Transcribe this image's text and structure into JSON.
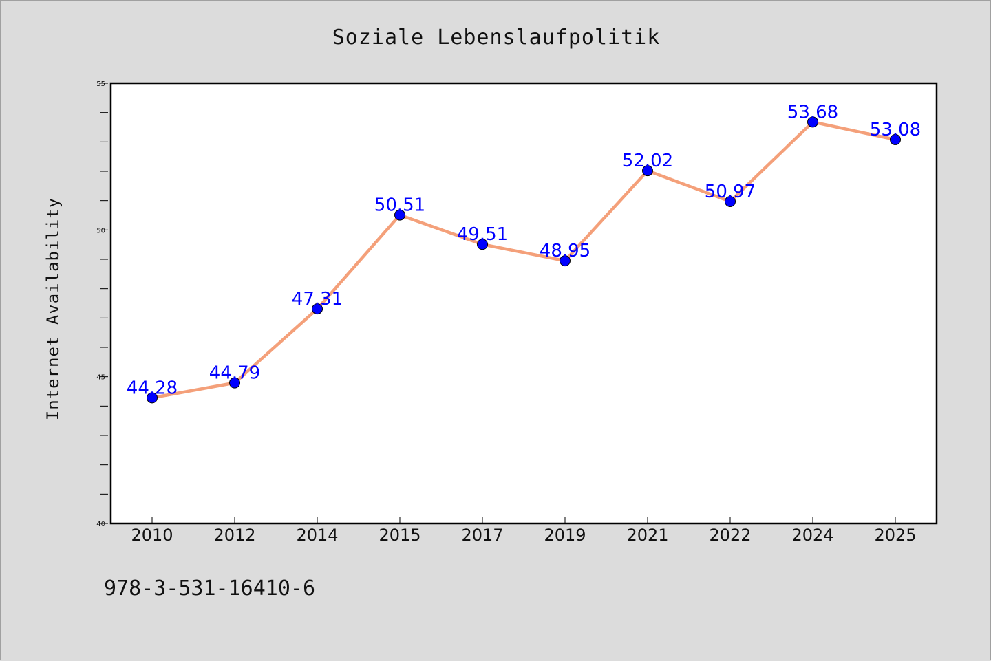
{
  "chart_data": {
    "type": "line",
    "title": "Soziale Lebenslaufpolitik",
    "xlabel": "",
    "ylabel": "Internet Availability",
    "categories": [
      "2010",
      "2012",
      "2014",
      "2015",
      "2017",
      "2019",
      "2021",
      "2022",
      "2024",
      "2025"
    ],
    "series": [
      {
        "values": [
          44.28,
          44.79,
          47.31,
          50.51,
          49.51,
          48.95,
          52.02,
          50.97,
          53.68,
          53.08
        ],
        "line_color": "#f4a07a",
        "marker_color": "#0000ff"
      }
    ],
    "data_labels": [
      "44.28",
      "44.79",
      "47.31",
      "50.51",
      "49.51",
      "48.95",
      "52.02",
      "50.97",
      "53.68",
      "53.08"
    ],
    "ylim": [
      40,
      55
    ],
    "yticks": [
      "40",
      "45",
      "50",
      "55"
    ],
    "label_color": "#0000ff",
    "grid": false,
    "legend": "none"
  },
  "footer": {
    "text": "978-3-531-16410-6"
  }
}
